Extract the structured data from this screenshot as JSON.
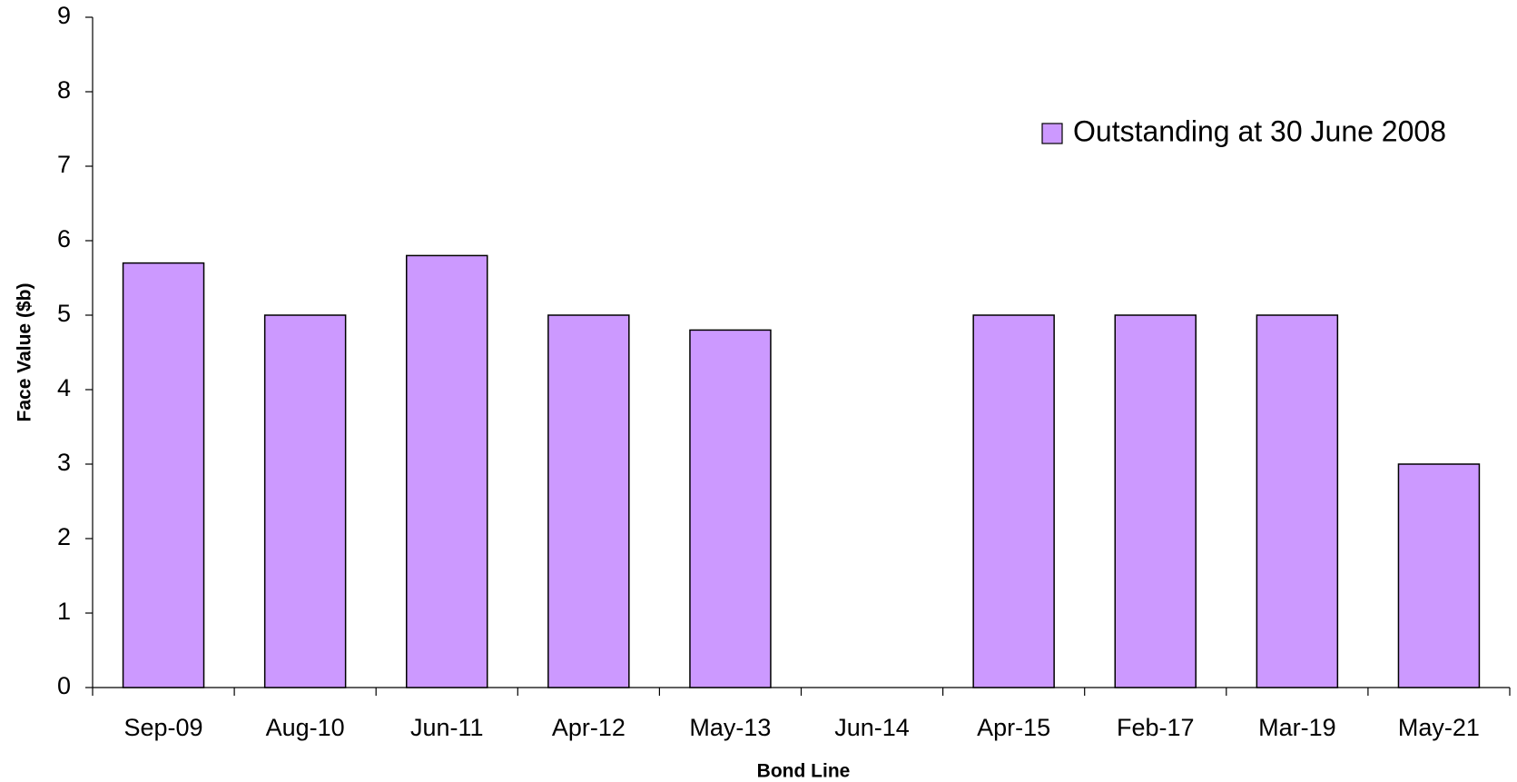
{
  "chart_data": {
    "type": "bar",
    "categories": [
      "Sep-09",
      "Aug-10",
      "Jun-11",
      "Apr-12",
      "May-13",
      "Jun-14",
      "Apr-15",
      "Feb-17",
      "Mar-19",
      "May-21"
    ],
    "series": [
      {
        "name": "Outstanding at 30 June 2008",
        "color": "#cc99ff",
        "values": [
          5.7,
          5.0,
          5.8,
          5.0,
          4.8,
          null,
          5.0,
          5.0,
          5.0,
          3.0
        ]
      }
    ],
    "ylim": [
      0,
      9
    ],
    "yticks": [
      0,
      1,
      2,
      3,
      4,
      5,
      6,
      7,
      8,
      9
    ],
    "ylabel": "Face Value ($b)",
    "xlabel": "Bond Line",
    "grid": false,
    "legend": "upper right"
  }
}
